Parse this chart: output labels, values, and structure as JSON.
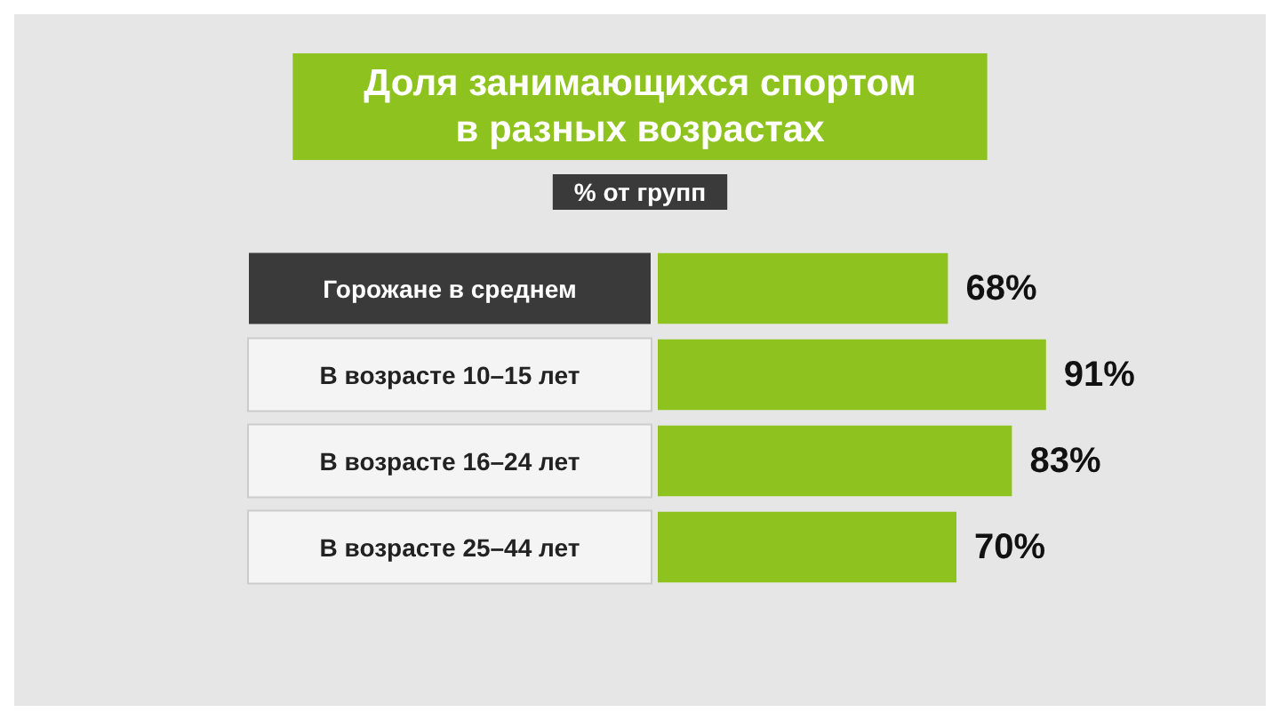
{
  "chart_data": {
    "type": "bar",
    "orientation": "horizontal",
    "title": "Доля занимающихся спортом\nв разных возрастах",
    "subtitle": "% от групп",
    "categories": [
      "Горожане в среднем",
      "В возрасте 10–15 лет",
      "В возрасте 16–24 лет",
      "В возрасте 25–44 лет"
    ],
    "values": [
      68,
      91,
      83,
      70
    ],
    "color": "#8dc21f",
    "value_labels": [
      "68%",
      "91%",
      "83%",
      "70%"
    ],
    "grid": false
  }
}
